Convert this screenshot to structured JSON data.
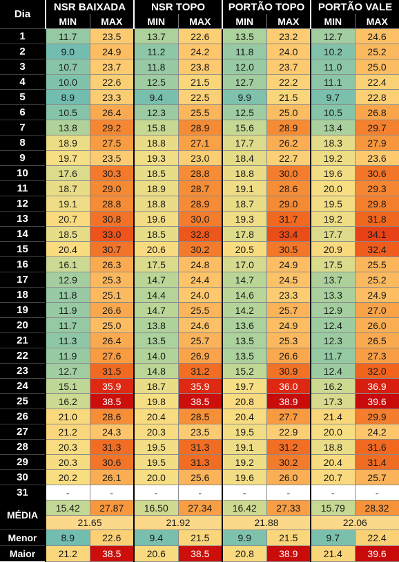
{
  "header": {
    "day_label": "Dia",
    "groups": [
      "NSR BAIXADA",
      "NSR TOPO",
      "PORTÃO TOPO",
      "PORTÃO VALE"
    ],
    "min_label": "MIN",
    "max_label": "MAX"
  },
  "rows": [
    {
      "day": "1",
      "v": [
        "11.7",
        "23.5",
        "13.7",
        "22.6",
        "13.5",
        "23.2",
        "12.7",
        "24.6"
      ]
    },
    {
      "day": "2",
      "v": [
        "9.0",
        "24.9",
        "11.2",
        "24.2",
        "11.8",
        "24.0",
        "10.2",
        "25.2"
      ]
    },
    {
      "day": "3",
      "v": [
        "10.7",
        "23.7",
        "11.8",
        "23.8",
        "12.0",
        "23.7",
        "11.0",
        "25.0"
      ]
    },
    {
      "day": "4",
      "v": [
        "10.0",
        "22.6",
        "12.5",
        "21.5",
        "12.7",
        "22.2",
        "11.1",
        "22.4"
      ]
    },
    {
      "day": "5",
      "v": [
        "8.9",
        "23.3",
        "9.4",
        "22.5",
        "9.9",
        "21.5",
        "9.7",
        "22.8"
      ]
    },
    {
      "day": "6",
      "v": [
        "10.5",
        "26.4",
        "12.3",
        "25.5",
        "12.5",
        "25.0",
        "10.5",
        "26.8"
      ]
    },
    {
      "day": "7",
      "v": [
        "13.8",
        "29.2",
        "15.8",
        "28.9",
        "15.6",
        "28.9",
        "13.4",
        "29.7"
      ]
    },
    {
      "day": "8",
      "v": [
        "18.9",
        "27.5",
        "18.8",
        "27.1",
        "17.7",
        "26.2",
        "18.3",
        "27.9"
      ]
    },
    {
      "day": "9",
      "v": [
        "19.7",
        "23.5",
        "19.3",
        "23.0",
        "18.4",
        "22.7",
        "19.2",
        "23.6"
      ]
    },
    {
      "day": "10",
      "v": [
        "17.6",
        "30.3",
        "18.5",
        "28.8",
        "18.8",
        "30.0",
        "19.6",
        "30.6"
      ]
    },
    {
      "day": "11",
      "v": [
        "18.7",
        "29.0",
        "18.9",
        "28.7",
        "19.1",
        "28.6",
        "20.0",
        "29.3"
      ]
    },
    {
      "day": "12",
      "v": [
        "19.1",
        "28.8",
        "18.8",
        "28.9",
        "18.7",
        "29.0",
        "19.5",
        "29.8"
      ]
    },
    {
      "day": "13",
      "v": [
        "20.7",
        "30.8",
        "19.6",
        "30.0",
        "19.3",
        "31.7",
        "19.2",
        "31.8"
      ]
    },
    {
      "day": "14",
      "v": [
        "18.5",
        "33.0",
        "18.5",
        "32.8",
        "17.8",
        "33.4",
        "17.7",
        "34.1"
      ]
    },
    {
      "day": "15",
      "v": [
        "20.4",
        "30.7",
        "20.6",
        "30.2",
        "20.5",
        "30.5",
        "20.9",
        "32.4"
      ]
    },
    {
      "day": "16",
      "v": [
        "16.1",
        "26.3",
        "17.5",
        "24.8",
        "17.0",
        "24.9",
        "17.5",
        "25.5"
      ]
    },
    {
      "day": "17",
      "v": [
        "12.9",
        "25.3",
        "14.7",
        "24.4",
        "14.7",
        "24.5",
        "13.7",
        "25.2"
      ]
    },
    {
      "day": "18",
      "v": [
        "11.8",
        "25.1",
        "14.4",
        "24.0",
        "14.6",
        "23.3",
        "13.3",
        "24.9"
      ]
    },
    {
      "day": "19",
      "v": [
        "11.9",
        "26.6",
        "14.7",
        "25.5",
        "14.2",
        "25.7",
        "12.9",
        "27.0"
      ]
    },
    {
      "day": "20",
      "v": [
        "11.7",
        "25.0",
        "13.8",
        "24.6",
        "13.6",
        "24.9",
        "12.4",
        "26.0"
      ]
    },
    {
      "day": "21",
      "v": [
        "11.3",
        "26.4",
        "13.5",
        "25.7",
        "13.5",
        "25.3",
        "12.3",
        "26.5"
      ]
    },
    {
      "day": "22",
      "v": [
        "11.9",
        "27.6",
        "14.0",
        "26.9",
        "13.5",
        "26.6",
        "11.7",
        "27.3"
      ]
    },
    {
      "day": "23",
      "v": [
        "12.7",
        "31.5",
        "14.8",
        "31.2",
        "15.2",
        "30.9",
        "12.4",
        "32.0"
      ]
    },
    {
      "day": "24",
      "v": [
        "15.1",
        "35.9",
        "18.7",
        "35.9",
        "19.7",
        "36.0",
        "16.2",
        "36.9"
      ]
    },
    {
      "day": "25",
      "v": [
        "16.2",
        "38.5",
        "19.8",
        "38.5",
        "20.8",
        "38.9",
        "17.3",
        "39.6"
      ]
    },
    {
      "day": "26",
      "v": [
        "21.0",
        "28.6",
        "20.4",
        "28.5",
        "20.4",
        "27.7",
        "21.4",
        "29.9"
      ]
    },
    {
      "day": "27",
      "v": [
        "21.2",
        "24.3",
        "20.3",
        "23.5",
        "19.5",
        "22.9",
        "20.0",
        "24.2"
      ]
    },
    {
      "day": "28",
      "v": [
        "20.3",
        "31.3",
        "19.5",
        "31.3",
        "19.1",
        "31.2",
        "18.8",
        "31.6"
      ]
    },
    {
      "day": "29",
      "v": [
        "20.3",
        "30.6",
        "19.5",
        "31.3",
        "19.2",
        "30.2",
        "20.4",
        "31.4"
      ]
    },
    {
      "day": "30",
      "v": [
        "20.2",
        "26.1",
        "20.0",
        "25.6",
        "19.6",
        "26.0",
        "20.7",
        "25.7"
      ]
    },
    {
      "day": "31",
      "v": [
        "-",
        "-",
        "-",
        "-",
        "-",
        "-",
        "-",
        "-"
      ]
    }
  ],
  "media": {
    "label": "MÉDIA",
    "values": [
      "15.42",
      "27.87",
      "16.50",
      "27.34",
      "16.42",
      "27.33",
      "15.79",
      "28.32"
    ],
    "avg": [
      "21.65",
      "21.92",
      "21.88",
      "22.06"
    ]
  },
  "menor": {
    "label": "Menor",
    "values": [
      "8.9",
      "22.6",
      "9.4",
      "21.5",
      "9.9",
      "21.5",
      "9.7",
      "22.4"
    ]
  },
  "maior": {
    "label": "Maior",
    "values": [
      "21.2",
      "38.5",
      "20.6",
      "38.5",
      "20.8",
      "38.9",
      "21.4",
      "39.6"
    ]
  }
}
